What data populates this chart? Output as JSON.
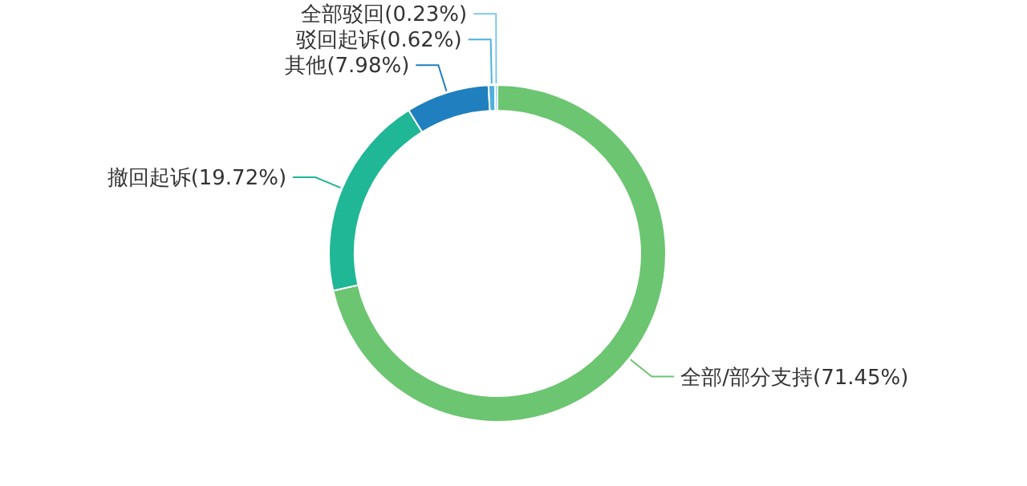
{
  "chart_data": {
    "type": "donut",
    "categories": [
      "全部/部分支持",
      "撤回起诉",
      "其他",
      "驳回起诉",
      "全部驳回"
    ],
    "values": [
      71.45,
      19.72,
      7.98,
      0.62,
      0.23
    ],
    "colors": [
      "#6cc570",
      "#20b796",
      "#1f7fbf",
      "#4fb0e0",
      "#7fc8ea"
    ],
    "value_labels": [
      "(71.45%)",
      "(19.72%)",
      "(7.98%)",
      "(0.62%)",
      "(0.23%)"
    ]
  }
}
